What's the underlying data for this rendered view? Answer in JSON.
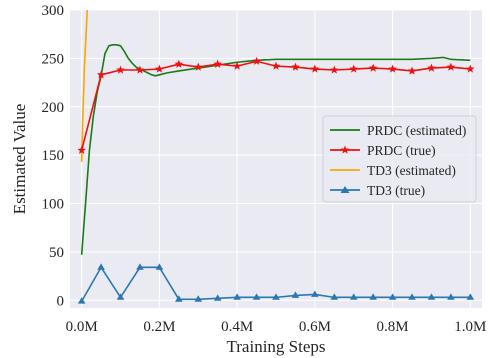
{
  "chart_data": {
    "type": "line",
    "xlabel": "Training Steps",
    "ylabel": "Estimated Value",
    "xlim": [
      -0.03,
      1.03
    ],
    "ylim": [
      -8,
      300
    ],
    "xticks": [
      {
        "value": 0.0,
        "label": "0.0M"
      },
      {
        "value": 0.2,
        "label": "0.2M"
      },
      {
        "value": 0.4,
        "label": "0.4M"
      },
      {
        "value": 0.6,
        "label": "0.6M"
      },
      {
        "value": 0.8,
        "label": "0.8M"
      },
      {
        "value": 1.0,
        "label": "1.0M"
      }
    ],
    "yticks": [
      0,
      50,
      100,
      150,
      200,
      250,
      300
    ],
    "grid": true,
    "background": "#eaeaf2",
    "legend": "center-right",
    "series": [
      {
        "name": "PRDC (estimated)",
        "color": "#1a7a1a",
        "marker": "none",
        "x": [
          0.0,
          0.01,
          0.02,
          0.03,
          0.04,
          0.05,
          0.06,
          0.07,
          0.08,
          0.09,
          0.1,
          0.11,
          0.12,
          0.13,
          0.14,
          0.15,
          0.16,
          0.17,
          0.18,
          0.19,
          0.2,
          0.22,
          0.25,
          0.3,
          0.35,
          0.4,
          0.45,
          0.5,
          0.55,
          0.6,
          0.65,
          0.7,
          0.75,
          0.8,
          0.85,
          0.9,
          0.93,
          0.95,
          1.0
        ],
        "y": [
          47,
          100,
          155,
          190,
          215,
          232,
          255,
          263,
          264,
          264,
          263,
          257,
          250,
          245,
          241,
          239,
          237,
          235,
          233,
          232,
          233,
          235,
          237,
          240,
          243,
          246,
          248,
          249,
          249,
          249,
          249,
          249,
          249,
          249,
          249,
          250,
          251,
          249,
          248
        ]
      },
      {
        "name": "PRDC (true)",
        "color": "#ee1111",
        "marker": "star",
        "x": [
          0.0,
          0.05,
          0.1,
          0.15,
          0.2,
          0.25,
          0.3,
          0.35,
          0.4,
          0.45,
          0.5,
          0.55,
          0.6,
          0.65,
          0.7,
          0.75,
          0.8,
          0.85,
          0.9,
          0.95,
          1.0
        ],
        "y": [
          155,
          233,
          238,
          238,
          239,
          244,
          241,
          244,
          242,
          247,
          242,
          241,
          239,
          238,
          239,
          240,
          239,
          237,
          240,
          241,
          239
        ]
      },
      {
        "name": "TD3 (estimated)",
        "color": "#ffa500",
        "marker": "none",
        "x": [
          0.0,
          0.003,
          0.007,
          0.012,
          0.018
        ],
        "y": [
          143,
          190,
          240,
          280,
          330
        ]
      },
      {
        "name": "TD3 (true)",
        "color": "#2b78b0",
        "marker": "triangle",
        "x": [
          0.0,
          0.05,
          0.1,
          0.15,
          0.2,
          0.25,
          0.3,
          0.35,
          0.4,
          0.45,
          0.5,
          0.55,
          0.6,
          0.65,
          0.7,
          0.75,
          0.8,
          0.85,
          0.9,
          0.95,
          1.0
        ],
        "y": [
          -1,
          34,
          3,
          34,
          34,
          1,
          1,
          2,
          3,
          3,
          3,
          5,
          6,
          3,
          3,
          3,
          3,
          3,
          3,
          3,
          3
        ]
      }
    ]
  }
}
